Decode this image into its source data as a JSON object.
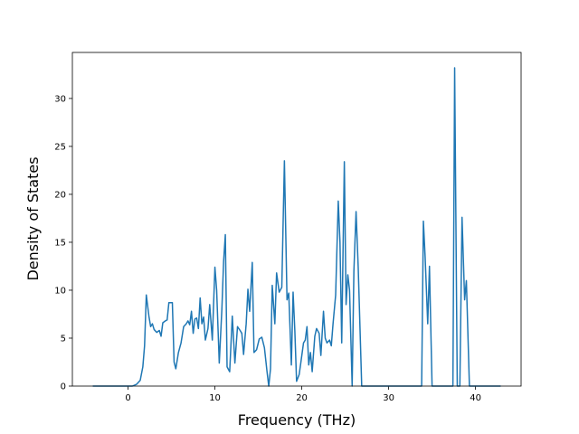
{
  "chart_data": {
    "type": "line",
    "xlabel": "Frequency (THz)",
    "ylabel": "Density of States",
    "color": "#1f77b4",
    "x": [
      -4.06,
      0.5,
      1.0,
      1.4,
      1.7,
      1.9,
      2.1,
      2.4,
      2.6,
      2.8,
      3.0,
      3.3,
      3.6,
      3.8,
      4.0,
      4.3,
      4.5,
      4.7,
      5.1,
      5.3,
      5.5,
      5.8,
      6.1,
      6.4,
      6.7,
      6.9,
      7.1,
      7.3,
      7.5,
      7.7,
      7.9,
      8.1,
      8.3,
      8.5,
      8.7,
      8.9,
      9.2,
      9.4,
      9.7,
      10.0,
      10.2,
      10.5,
      10.8,
      11.0,
      11.2,
      11.4,
      11.7,
      12.0,
      12.3,
      12.6,
      12.9,
      13.1,
      13.3,
      13.6,
      13.8,
      14.0,
      14.3,
      14.5,
      14.8,
      15.1,
      15.4,
      15.7,
      16.0,
      16.2,
      16.4,
      16.6,
      16.9,
      17.1,
      17.4,
      17.7,
      18.0,
      18.3,
      18.5,
      18.8,
      19.0,
      19.2,
      19.4,
      19.7,
      19.9,
      20.2,
      20.4,
      20.6,
      20.8,
      21.0,
      21.2,
      21.5,
      21.7,
      22.0,
      22.2,
      22.5,
      22.7,
      22.9,
      23.2,
      23.4,
      23.6,
      23.9,
      24.2,
      24.4,
      24.6,
      24.9,
      25.1,
      25.3,
      25.5,
      25.8,
      26.0,
      26.25,
      26.5,
      26.9,
      33.8,
      34.0,
      34.2,
      34.5,
      34.7,
      35.0,
      37.4,
      37.6,
      37.9,
      38.2,
      38.45,
      38.75,
      38.95,
      39.3,
      42.9
    ],
    "values": [
      0,
      0,
      0.2,
      0.6,
      2.0,
      4.2,
      9.5,
      7.3,
      6.2,
      6.5,
      5.9,
      5.6,
      5.8,
      5.2,
      6.6,
      6.8,
      6.9,
      8.7,
      8.7,
      2.5,
      1.8,
      3.5,
      4.5,
      6.2,
      6.5,
      6.8,
      6.4,
      7.8,
      5.5,
      7.0,
      7.1,
      6.0,
      9.2,
      6.5,
      7.2,
      4.8,
      6.0,
      8.5,
      4.8,
      12.4,
      10.0,
      2.4,
      8.0,
      13.0,
      15.8,
      2.0,
      1.5,
      7.3,
      2.4,
      6.2,
      5.8,
      5.5,
      3.3,
      6.5,
      10.1,
      7.8,
      12.9,
      3.5,
      3.8,
      4.9,
      5.1,
      4.0,
      1.5,
      0,
      1.8,
      10.5,
      6.5,
      11.8,
      9.8,
      10.3,
      23.5,
      9.0,
      9.7,
      2.2,
      9.8,
      5.8,
      0.5,
      1.2,
      2.5,
      4.5,
      4.8,
      6.2,
      2.2,
      3.5,
      1.5,
      5.2,
      6.0,
      5.5,
      3.2,
      7.8,
      5.0,
      4.5,
      4.8,
      4.2,
      6.5,
      9.5,
      19.3,
      15.0,
      4.5,
      23.4,
      8.5,
      11.6,
      10.0,
      0,
      12.0,
      18.2,
      12.3,
      0,
      0,
      17.2,
      13.5,
      6.5,
      12.5,
      0,
      0,
      33.2,
      0,
      0,
      17.6,
      9.0,
      11.0,
      0,
      0
    ],
    "xlim": [
      -6.41,
      45.25
    ],
    "xticks": [
      0,
      10,
      20,
      30,
      40
    ],
    "ylim": [
      0,
      34.8
    ],
    "yticks": [
      0,
      5,
      10,
      15,
      20,
      25,
      30
    ]
  }
}
